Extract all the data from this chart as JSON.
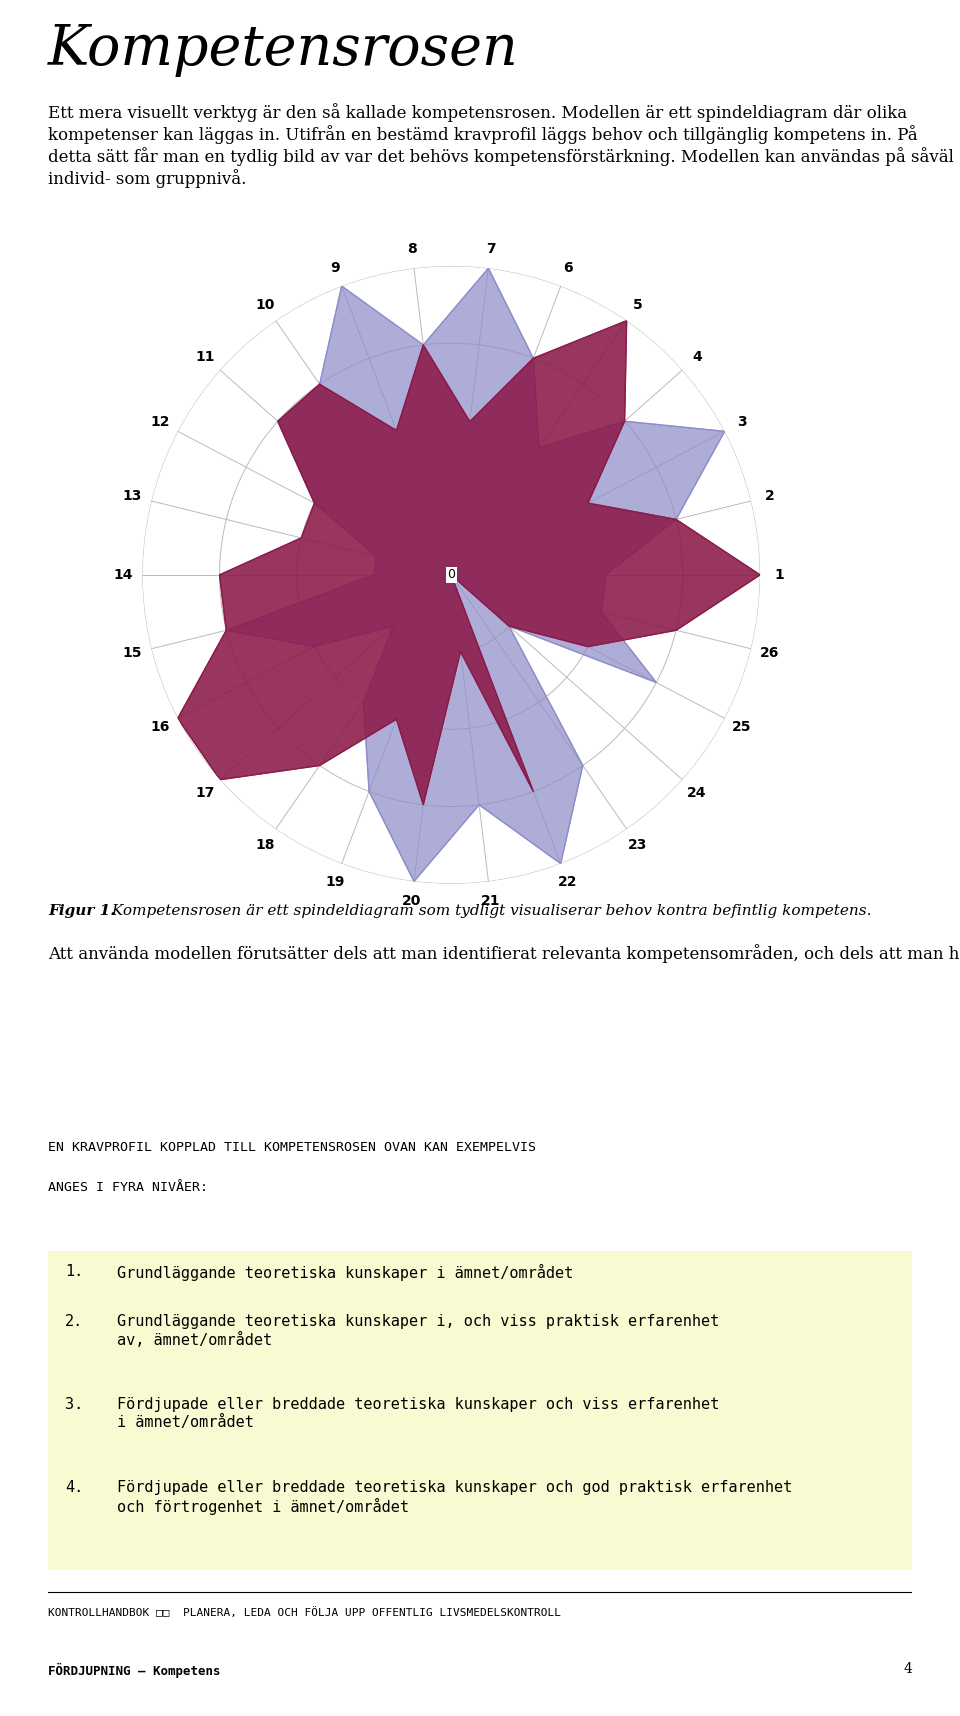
{
  "title": "Kompetensrosen",
  "intro_text": "Ett mera visuellt verktyg är den så kallade kompetensrosen. Modellen är ett spindeldiagram där olika kompetenser kan läggas in. Utifrån en bestämd kravprofil läggs behov och tillgänglig kompetens in. På detta sätt får man en tydlig bild av var det behövs kompetensförstärkning. Modellen kan användas på såväl individ- som gruppnivå.",
  "n_axes": 26,
  "max_val": 4,
  "radar_labels": [
    "1",
    "2",
    "3",
    "4",
    "5",
    "6",
    "7",
    "8",
    "9",
    "10",
    "11",
    "12",
    "13",
    "14",
    "15",
    "16",
    "17",
    "18",
    "19",
    "20",
    "21",
    "22",
    "23",
    "24",
    "25",
    "26"
  ],
  "series1_color": "#8B1A4A",
  "series2_color": "#8B8BC8",
  "series1_alpha": 0.88,
  "series2_alpha": 0.7,
  "series1_values": [
    4,
    3,
    2,
    3,
    4,
    3,
    2,
    3,
    2,
    3,
    3,
    2,
    2,
    3,
    3,
    4,
    4,
    3,
    2,
    3,
    1,
    3,
    0,
    1,
    2,
    3
  ],
  "series2_values": [
    2,
    3,
    4,
    3,
    2,
    3,
    4,
    3,
    4,
    3,
    3,
    2,
    1,
    1,
    3,
    2,
    1,
    2,
    3,
    4,
    3,
    4,
    3,
    1,
    3,
    2
  ],
  "figure_caption_bold": "Figur 1.",
  "figure_caption_italic": " Kompetensrosen är ett spindeldiagram som tydligt visualiserar behov kontra befintlig kompetens.",
  "para2": "Att använda modellen förutsätter dels att man identifierat relevanta kompetensområden, och dels att man har bestämt nivåer (gradering) för vad som är lite eller mycket inom kompetensområdena.",
  "box_title_line1": "EN KRAVPROFIL KOPPLAD TILL KOMPETENSROSEN OVAN KAN EXEMPELVIS",
  "box_title_line2": "ANGES I FYRA NIVÅER:",
  "box_bg_color": "#FAFAD2",
  "box_items": [
    "Grundläggande teoretiska kunskaper i ämnet/området",
    "Grundläggande teoretiska kunskaper i, och viss praktisk erfarenhet\nav, ämnet/området",
    "Fördjupade eller breddade teoretiska kunskaper och viss erfarenhet\ni ämnet/området",
    "Fördjupade eller breddade teoretiska kunskaper och god praktisk erfarenhet\noch förtrogenhet i ämnet/området"
  ],
  "footer_line": "KONTROLLHANDBOK □□  PLANERA, LEDA OCH FÖLJA UPP OFFENTLIG LIVSMEDELSKONTROLL",
  "footer_sub": "FÖRDJUPNING – Kompetens",
  "footer_page": "4",
  "bg_color": "#FFFFFF",
  "text_color": "#000000",
  "grid_color": "#BBBBBB"
}
